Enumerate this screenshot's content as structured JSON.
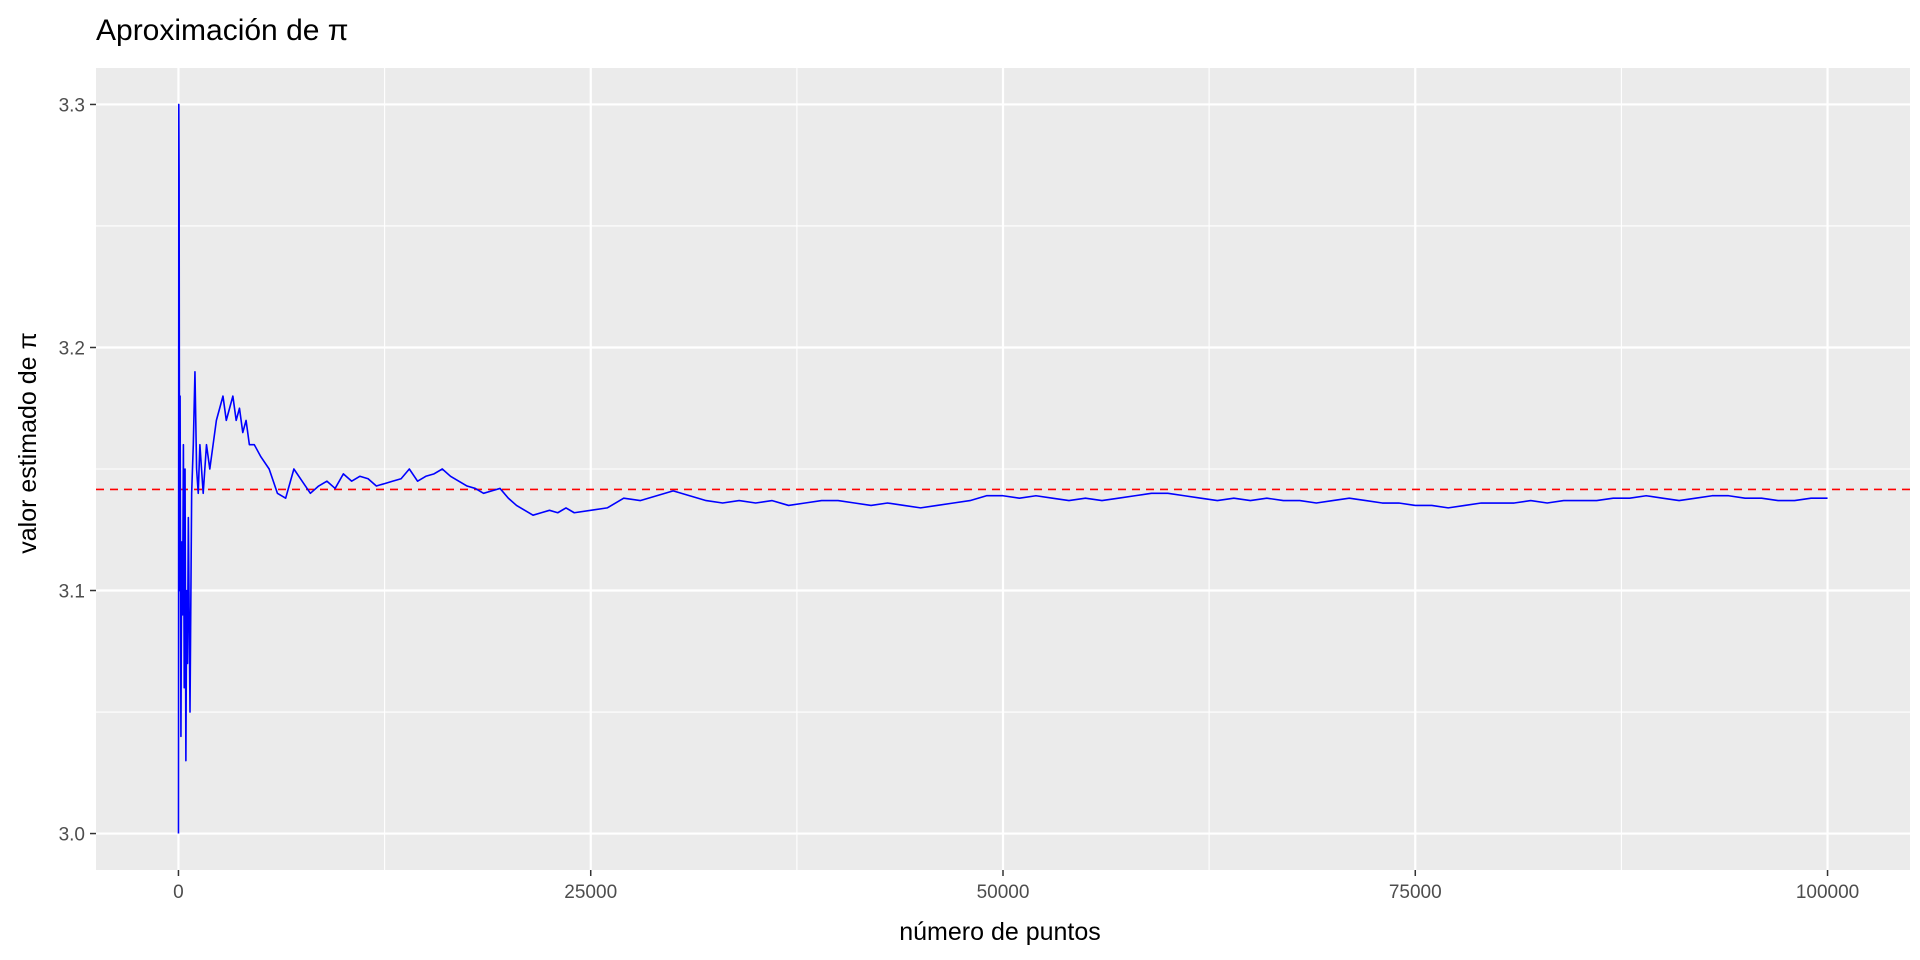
{
  "chart_data": {
    "type": "line",
    "title": "Aproximación de π",
    "xlabel": "número de puntos",
    "ylabel": "valor estimado de π",
    "xlim": [
      -5000,
      105000
    ],
    "ylim": [
      2.985,
      3.315
    ],
    "x_ticks": [
      0,
      25000,
      50000,
      75000,
      100000
    ],
    "x_tick_labels": [
      "0",
      "25000",
      "50000",
      "75000",
      "100000"
    ],
    "x_minor_ticks": [
      12500,
      37500,
      62500,
      87500
    ],
    "y_ticks": [
      3.0,
      3.1,
      3.2,
      3.3
    ],
    "y_tick_labels": [
      "3.0",
      "3.1",
      "3.2",
      "3.3"
    ],
    "y_minor_ticks": [
      3.05,
      3.15,
      3.25
    ],
    "grid": true,
    "legend": "none",
    "series": [
      {
        "color": "#0000ff",
        "points": [
          [
            1,
            3.0
          ],
          [
            20,
            3.3
          ],
          [
            40,
            3.27
          ],
          [
            70,
            3.1
          ],
          [
            100,
            3.18
          ],
          [
            150,
            3.04
          ],
          [
            200,
            3.12
          ],
          [
            250,
            3.09
          ],
          [
            300,
            3.16
          ],
          [
            350,
            3.06
          ],
          [
            400,
            3.15
          ],
          [
            450,
            3.03
          ],
          [
            500,
            3.1
          ],
          [
            550,
            3.07
          ],
          [
            600,
            3.13
          ],
          [
            650,
            3.09
          ],
          [
            700,
            3.05
          ],
          [
            800,
            3.14
          ],
          [
            900,
            3.16
          ],
          [
            1000,
            3.19
          ],
          [
            1100,
            3.15
          ],
          [
            1200,
            3.14
          ],
          [
            1300,
            3.16
          ],
          [
            1400,
            3.15
          ],
          [
            1500,
            3.14
          ],
          [
            1700,
            3.16
          ],
          [
            1900,
            3.15
          ],
          [
            2100,
            3.16
          ],
          [
            2300,
            3.17
          ],
          [
            2500,
            3.175
          ],
          [
            2700,
            3.18
          ],
          [
            2900,
            3.17
          ],
          [
            3100,
            3.175
          ],
          [
            3300,
            3.18
          ],
          [
            3500,
            3.17
          ],
          [
            3700,
            3.175
          ],
          [
            3900,
            3.165
          ],
          [
            4100,
            3.17
          ],
          [
            4300,
            3.16
          ],
          [
            4600,
            3.16
          ],
          [
            5000,
            3.155
          ],
          [
            5500,
            3.15
          ],
          [
            6000,
            3.14
          ],
          [
            6500,
            3.138
          ],
          [
            7000,
            3.15
          ],
          [
            7500,
            3.145
          ],
          [
            8000,
            3.14
          ],
          [
            8500,
            3.143
          ],
          [
            9000,
            3.145
          ],
          [
            9500,
            3.142
          ],
          [
            10000,
            3.148
          ],
          [
            10500,
            3.145
          ],
          [
            11000,
            3.147
          ],
          [
            11500,
            3.146
          ],
          [
            12000,
            3.143
          ],
          [
            12500,
            3.144
          ],
          [
            13000,
            3.145
          ],
          [
            13500,
            3.146
          ],
          [
            14000,
            3.15
          ],
          [
            14500,
            3.145
          ],
          [
            15000,
            3.147
          ],
          [
            15500,
            3.148
          ],
          [
            16000,
            3.15
          ],
          [
            16500,
            3.147
          ],
          [
            17000,
            3.145
          ],
          [
            17500,
            3.143
          ],
          [
            18000,
            3.142
          ],
          [
            18500,
            3.14
          ],
          [
            19000,
            3.141
          ],
          [
            19500,
            3.142
          ],
          [
            20000,
            3.138
          ],
          [
            20500,
            3.135
          ],
          [
            21000,
            3.133
          ],
          [
            21500,
            3.131
          ],
          [
            22000,
            3.132
          ],
          [
            22500,
            3.133
          ],
          [
            23000,
            3.132
          ],
          [
            23500,
            3.134
          ],
          [
            24000,
            3.132
          ],
          [
            25000,
            3.133
          ],
          [
            26000,
            3.134
          ],
          [
            27000,
            3.138
          ],
          [
            28000,
            3.137
          ],
          [
            29000,
            3.139
          ],
          [
            30000,
            3.141
          ],
          [
            31000,
            3.139
          ],
          [
            32000,
            3.137
          ],
          [
            33000,
            3.136
          ],
          [
            34000,
            3.137
          ],
          [
            35000,
            3.136
          ],
          [
            36000,
            3.137
          ],
          [
            37000,
            3.135
          ],
          [
            38000,
            3.136
          ],
          [
            39000,
            3.137
          ],
          [
            40000,
            3.137
          ],
          [
            41000,
            3.136
          ],
          [
            42000,
            3.135
          ],
          [
            43000,
            3.136
          ],
          [
            44000,
            3.135
          ],
          [
            45000,
            3.134
          ],
          [
            46000,
            3.135
          ],
          [
            47000,
            3.136
          ],
          [
            48000,
            3.137
          ],
          [
            49000,
            3.139
          ],
          [
            50000,
            3.139
          ],
          [
            51000,
            3.138
          ],
          [
            52000,
            3.139
          ],
          [
            53000,
            3.138
          ],
          [
            54000,
            3.137
          ],
          [
            55000,
            3.138
          ],
          [
            56000,
            3.137
          ],
          [
            57000,
            3.138
          ],
          [
            58000,
            3.139
          ],
          [
            59000,
            3.14
          ],
          [
            60000,
            3.14
          ],
          [
            61000,
            3.139
          ],
          [
            62000,
            3.138
          ],
          [
            63000,
            3.137
          ],
          [
            64000,
            3.138
          ],
          [
            65000,
            3.137
          ],
          [
            66000,
            3.138
          ],
          [
            67000,
            3.137
          ],
          [
            68000,
            3.137
          ],
          [
            69000,
            3.136
          ],
          [
            70000,
            3.137
          ],
          [
            71000,
            3.138
          ],
          [
            72000,
            3.137
          ],
          [
            73000,
            3.136
          ],
          [
            74000,
            3.136
          ],
          [
            75000,
            3.135
          ],
          [
            76000,
            3.135
          ],
          [
            77000,
            3.134
          ],
          [
            78000,
            3.135
          ],
          [
            79000,
            3.136
          ],
          [
            80000,
            3.136
          ],
          [
            81000,
            3.136
          ],
          [
            82000,
            3.137
          ],
          [
            83000,
            3.136
          ],
          [
            84000,
            3.137
          ],
          [
            85000,
            3.137
          ],
          [
            86000,
            3.137
          ],
          [
            87000,
            3.138
          ],
          [
            88000,
            3.138
          ],
          [
            89000,
            3.139
          ],
          [
            90000,
            3.138
          ],
          [
            91000,
            3.137
          ],
          [
            92000,
            3.138
          ],
          [
            93000,
            3.139
          ],
          [
            94000,
            3.139
          ],
          [
            95000,
            3.138
          ],
          [
            96000,
            3.138
          ],
          [
            97000,
            3.137
          ],
          [
            98000,
            3.137
          ],
          [
            99000,
            3.138
          ],
          [
            100000,
            3.138
          ]
        ]
      }
    ],
    "reference_lines": [
      {
        "type": "hline",
        "y": 3.14159,
        "color": "#ff0000",
        "style": "dashed"
      }
    ],
    "colors": {
      "panel_background": "#ebebeb",
      "grid": "#ffffff",
      "axis_tick": "#333333",
      "tick_label": "#4d4d4d"
    }
  }
}
